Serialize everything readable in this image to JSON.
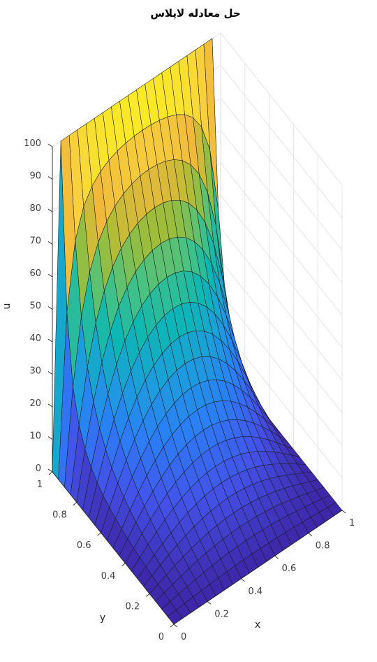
{
  "chart_data": {
    "type": "surface",
    "title": "حل معادله لاپلاس",
    "xlabel": "x",
    "ylabel": "y",
    "zlabel": "u",
    "x_ticks": [
      "0",
      "0.2",
      "0.4",
      "0.6",
      "0.8",
      "1"
    ],
    "y_ticks": [
      "0",
      "0.2",
      "0.4",
      "0.6",
      "0.8",
      "1"
    ],
    "z_ticks": [
      "0",
      "10",
      "20",
      "30",
      "40",
      "50",
      "60",
      "70",
      "80",
      "90",
      "100"
    ],
    "xlim": [
      0,
      1
    ],
    "ylim": [
      0,
      1
    ],
    "zlim": [
      0,
      100
    ],
    "grid_points": 21,
    "boundary": {
      "u_at_y_equals_1": 100,
      "u_at_x_equals_0": 0,
      "u_at_x_equals_1": 0,
      "u_at_y_equals_0": 0
    },
    "colormap": "parula",
    "colormap_stops": [
      "#3e26a8",
      "#4353e9",
      "#2b7ef6",
      "#1c9edc",
      "#0cb7b3",
      "#4ac281",
      "#a3bd36",
      "#f1b93a",
      "#f9d33c",
      "#f9fb15"
    ],
    "grid": true
  }
}
